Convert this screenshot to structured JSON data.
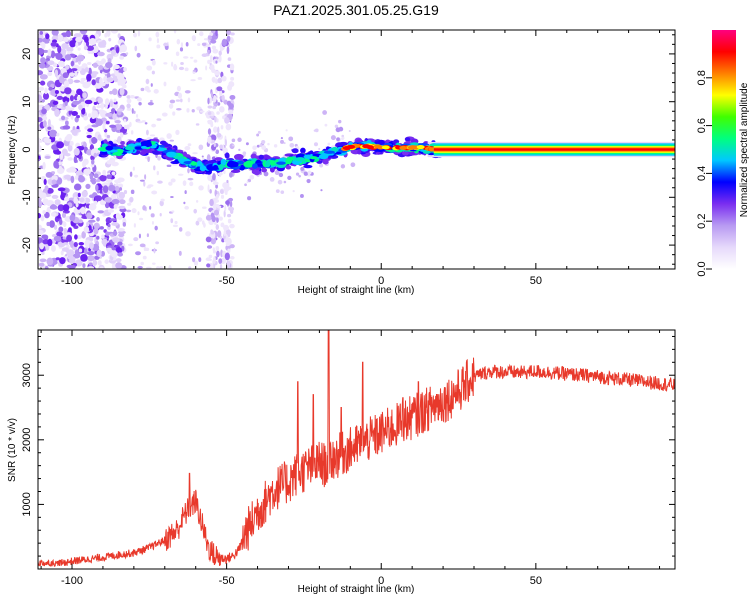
{
  "chart_data": [
    {
      "type": "heatmap",
      "title": "PAZ1.2025.301.05.25.G19",
      "xlabel": "Height of straight line (km)",
      "ylabel": "Frequency (Hz)",
      "xlim": [
        -111,
        95
      ],
      "ylim": [
        -25,
        25
      ],
      "xticks": [
        -100,
        -50,
        0,
        50
      ],
      "xtick_labels": [
        "-100",
        "-50",
        "0",
        "50"
      ],
      "yticks": [
        -20,
        -10,
        0,
        10,
        20
      ],
      "ytick_labels": [
        "-20",
        "-10",
        "0",
        "10",
        "20"
      ],
      "ridge": {
        "x": [
          -90,
          -85,
          -80,
          -75,
          -70,
          -65,
          -60,
          -55,
          -50,
          -45,
          -40,
          -35,
          -30,
          -25,
          -20,
          -15,
          -10,
          -5,
          0,
          5,
          10,
          15,
          20,
          95
        ],
        "y": [
          0.3,
          -0.5,
          0.5,
          1.0,
          -0.2,
          -2.0,
          -3.5,
          -3.8,
          -3.0,
          -3.2,
          -3.0,
          -2.8,
          -2.5,
          -2.0,
          -1.5,
          -0.5,
          0.5,
          0.8,
          0.5,
          0.3,
          0.4,
          0.2,
          0.0,
          0.0
        ]
      },
      "colorbar": {
        "label": "Normalized spectral amplitude",
        "range": [
          0.0,
          1.0
        ],
        "ticks": [
          0.0,
          0.2,
          0.4,
          0.6,
          0.8
        ],
        "tick_labels": [
          "0.0",
          "0.2",
          "0.4",
          "0.6",
          "0.8"
        ],
        "colors": [
          "#ffffff",
          "#e6d9fb",
          "#b89af2",
          "#7a2ef0",
          "#0000ff",
          "#00c8ff",
          "#00ff80",
          "#40ff00",
          "#ffff00",
          "#ff8000",
          "#ff0000",
          "#ff007f"
        ]
      },
      "line_color": "#ff0000"
    },
    {
      "type": "line",
      "title": "",
      "xlabel": "Height of straight line (km)",
      "ylabel": "SNR (10 * v/v)",
      "xlim": [
        -111,
        95
      ],
      "ylim": [
        0,
        3700
      ],
      "xticks": [
        -100,
        -50,
        0,
        50
      ],
      "xtick_labels": [
        "-100",
        "-50",
        "0",
        "50"
      ],
      "yticks": [
        1000,
        2000,
        3000
      ],
      "ytick_labels": [
        "1000",
        "2000",
        "3000"
      ],
      "series": [
        {
          "name": "SNR",
          "color": "#e8392b",
          "x": [
            -111,
            -105,
            -100,
            -95,
            -90,
            -85,
            -80,
            -75,
            -70,
            -66,
            -64,
            -62,
            -60,
            -58,
            -56,
            -54,
            -52,
            -50,
            -48,
            -46,
            -44,
            -42,
            -40,
            -38,
            -36,
            -34,
            -32,
            -30,
            -28,
            -26,
            -24,
            -22,
            -20,
            -18,
            -16,
            -14,
            -12,
            -10,
            -8,
            -6,
            -4,
            -2,
            0,
            2,
            4,
            6,
            8,
            10,
            12,
            14,
            16,
            18,
            20,
            22,
            24,
            26,
            28,
            30,
            33,
            36,
            40,
            45,
            50,
            55,
            60,
            65,
            70,
            75,
            80,
            85,
            90,
            95
          ],
          "y": [
            100,
            80,
            120,
            150,
            180,
            220,
            250,
            330,
            450,
            600,
            800,
            950,
            1050,
            700,
            350,
            200,
            170,
            160,
            200,
            300,
            550,
            700,
            900,
            1000,
            1150,
            1250,
            1300,
            1350,
            1450,
            1500,
            1550,
            1600,
            1650,
            1600,
            1700,
            1750,
            1800,
            1850,
            1900,
            1950,
            2000,
            2050,
            2100,
            2150,
            2200,
            2250,
            2300,
            2350,
            2400,
            2450,
            2500,
            2550,
            2600,
            2650,
            2720,
            2800,
            2900,
            2980,
            3030,
            3060,
            3050,
            3040,
            3060,
            3040,
            3020,
            3000,
            2980,
            2950,
            2930,
            2900,
            2870,
            2850
          ],
          "spikes": [
            {
              "x": -62,
              "y": 1480
            },
            {
              "x": -27,
              "y": 2900
            },
            {
              "x": -22,
              "y": 2700
            },
            {
              "x": -17,
              "y": 3700
            },
            {
              "x": -13,
              "y": 2500
            },
            {
              "x": -6,
              "y": 3200
            },
            {
              "x": 7,
              "y": 2650
            },
            {
              "x": 12,
              "y": 2900
            }
          ]
        }
      ]
    }
  ]
}
